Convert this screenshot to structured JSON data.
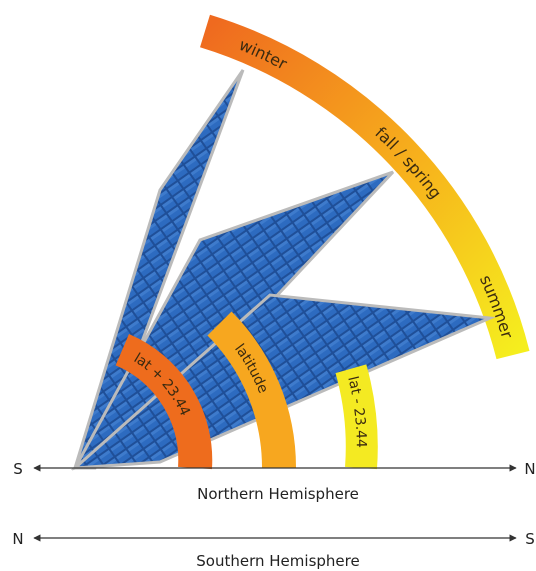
{
  "season_arc": {
    "labels": [
      "winter",
      "fall / spring",
      "summer"
    ]
  },
  "tilt_bands": [
    "lat + 23.44",
    "latitude",
    "lat - 23.44"
  ],
  "axes": [
    {
      "left": "S",
      "right": "N",
      "label": "Northern Hemisphere"
    },
    {
      "left": "N",
      "right": "S",
      "label": "Southern Hemisphere"
    }
  ]
}
